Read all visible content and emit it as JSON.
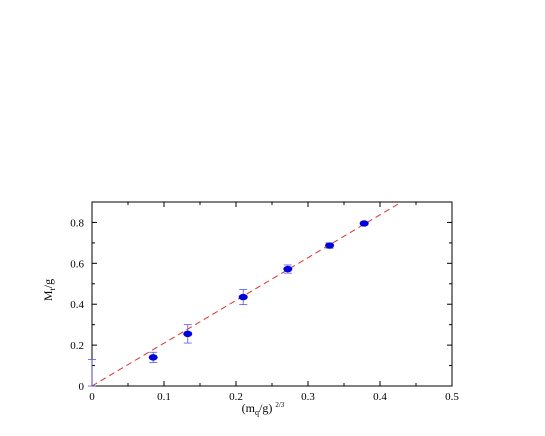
{
  "chart_data": {
    "type": "scatter",
    "title": "",
    "xlabel": {
      "base": "(m",
      "sub": "q",
      "rest": "/g)",
      "sup": "2/3"
    },
    "ylabel": {
      "base": "M",
      "sub": "t",
      "rest": "/g"
    },
    "xlim": [
      0,
      0.5
    ],
    "ylim": [
      0,
      0.9
    ],
    "xticks": [
      0,
      0.1,
      0.2,
      0.3,
      0.4,
      0.5
    ],
    "xtick_labels": [
      "0",
      "0.1",
      "0.2",
      "0.3",
      "0.4",
      "0.5"
    ],
    "yticks": [
      0,
      0.2,
      0.4,
      0.6,
      0.8
    ],
    "ytick_labels": [
      "0",
      "0.2",
      "0.4",
      "0.6",
      "0.8"
    ],
    "grid": false,
    "colors": {
      "points": "#0000dd",
      "errorbars": "#5555ee",
      "fit_line": "#e03030",
      "axes": "#000000"
    },
    "series": [
      {
        "x": [
          0.0,
          0.085,
          0.133,
          0.21,
          0.272,
          0.33,
          0.378
        ],
        "y": [
          0.065,
          0.14,
          0.255,
          0.435,
          0.572,
          0.687,
          0.795
        ],
        "yerr": [
          0.065,
          0.025,
          0.045,
          0.037,
          0.02,
          0.013,
          0.008
        ],
        "markers": [
          false,
          true,
          true,
          true,
          true,
          true,
          true
        ]
      }
    ],
    "fit_line": {
      "x": [
        0.0,
        0.43
      ],
      "y": [
        0.0,
        0.9
      ],
      "style": "dashed"
    }
  }
}
